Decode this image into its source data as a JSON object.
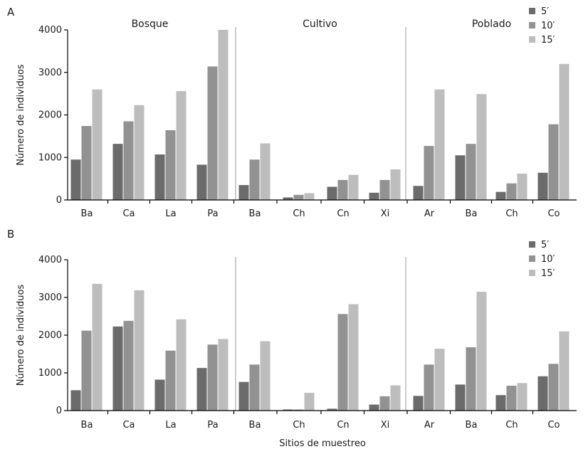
{
  "figure": {
    "xlabel": "Sitios de muestreo"
  },
  "colors": {
    "5m": "#6b6b6b",
    "10m": "#929292",
    "15m": "#bdbdbd",
    "axis": "#000000",
    "separator": "#aaaaaa"
  },
  "chart_data": [
    {
      "type": "bar",
      "panel": "A",
      "ylabel": "Número de individuos",
      "ylim": [
        0,
        4000
      ],
      "yticks": [
        "0",
        "1000",
        "2000",
        "3000",
        "4000"
      ],
      "legend": [
        "5′",
        "10′",
        "15′"
      ],
      "legend_position": "top-right",
      "groups": [
        {
          "name": "Bosque",
          "categories": [
            "Ba",
            "Ca",
            "La",
            "Pa"
          ]
        },
        {
          "name": "Cultivo",
          "categories": [
            "Ba",
            "Ch",
            "Cn",
            "Xi"
          ]
        },
        {
          "name": "Poblado",
          "categories": [
            "Ar",
            "Ba",
            "Ch",
            "Co"
          ]
        }
      ],
      "categories": [
        "Ba",
        "Ca",
        "La",
        "Pa",
        "Ba",
        "Ch",
        "Cn",
        "Xi",
        "Ar",
        "Ba",
        "Ch",
        "Co"
      ],
      "series": [
        {
          "name": "5′",
          "values": [
            950,
            1320,
            1070,
            830,
            350,
            60,
            310,
            170,
            330,
            1050,
            190,
            640
          ]
        },
        {
          "name": "10′",
          "values": [
            1740,
            1850,
            1640,
            3140,
            950,
            120,
            470,
            470,
            1270,
            1320,
            390,
            1780
          ]
        },
        {
          "name": "15′",
          "values": [
            2600,
            2230,
            2560,
            4000,
            1330,
            160,
            590,
            720,
            2600,
            2490,
            620,
            3200
          ]
        }
      ]
    },
    {
      "type": "bar",
      "panel": "B",
      "ylabel": "Número de individuos",
      "ylim": [
        0,
        4000
      ],
      "yticks": [
        "0",
        "1000",
        "2000",
        "3000",
        "4000"
      ],
      "legend": [
        "5′",
        "10′",
        "15′"
      ],
      "legend_position": "top-right",
      "groups": [
        {
          "name": "",
          "categories": [
            "Ba",
            "Ca",
            "La",
            "Pa"
          ]
        },
        {
          "name": "",
          "categories": [
            "Ba",
            "Ch",
            "Cn",
            "Xi"
          ]
        },
        {
          "name": "",
          "categories": [
            "Ar",
            "Ba",
            "Ch",
            "Co"
          ]
        }
      ],
      "categories": [
        "Ba",
        "Ca",
        "La",
        "Pa",
        "Ba",
        "Ch",
        "Cn",
        "Xi",
        "Ar",
        "Ba",
        "Ch",
        "Co"
      ],
      "series": [
        {
          "name": "5′",
          "values": [
            540,
            2230,
            820,
            1130,
            760,
            30,
            50,
            160,
            390,
            690,
            410,
            910
          ]
        },
        {
          "name": "10′",
          "values": [
            2120,
            2380,
            1590,
            1750,
            1220,
            30,
            2560,
            380,
            1220,
            1680,
            660,
            1240
          ]
        },
        {
          "name": "15′",
          "values": [
            3360,
            3190,
            2420,
            1900,
            1840,
            470,
            2820,
            670,
            1640,
            3150,
            730,
            2100
          ]
        }
      ]
    }
  ]
}
